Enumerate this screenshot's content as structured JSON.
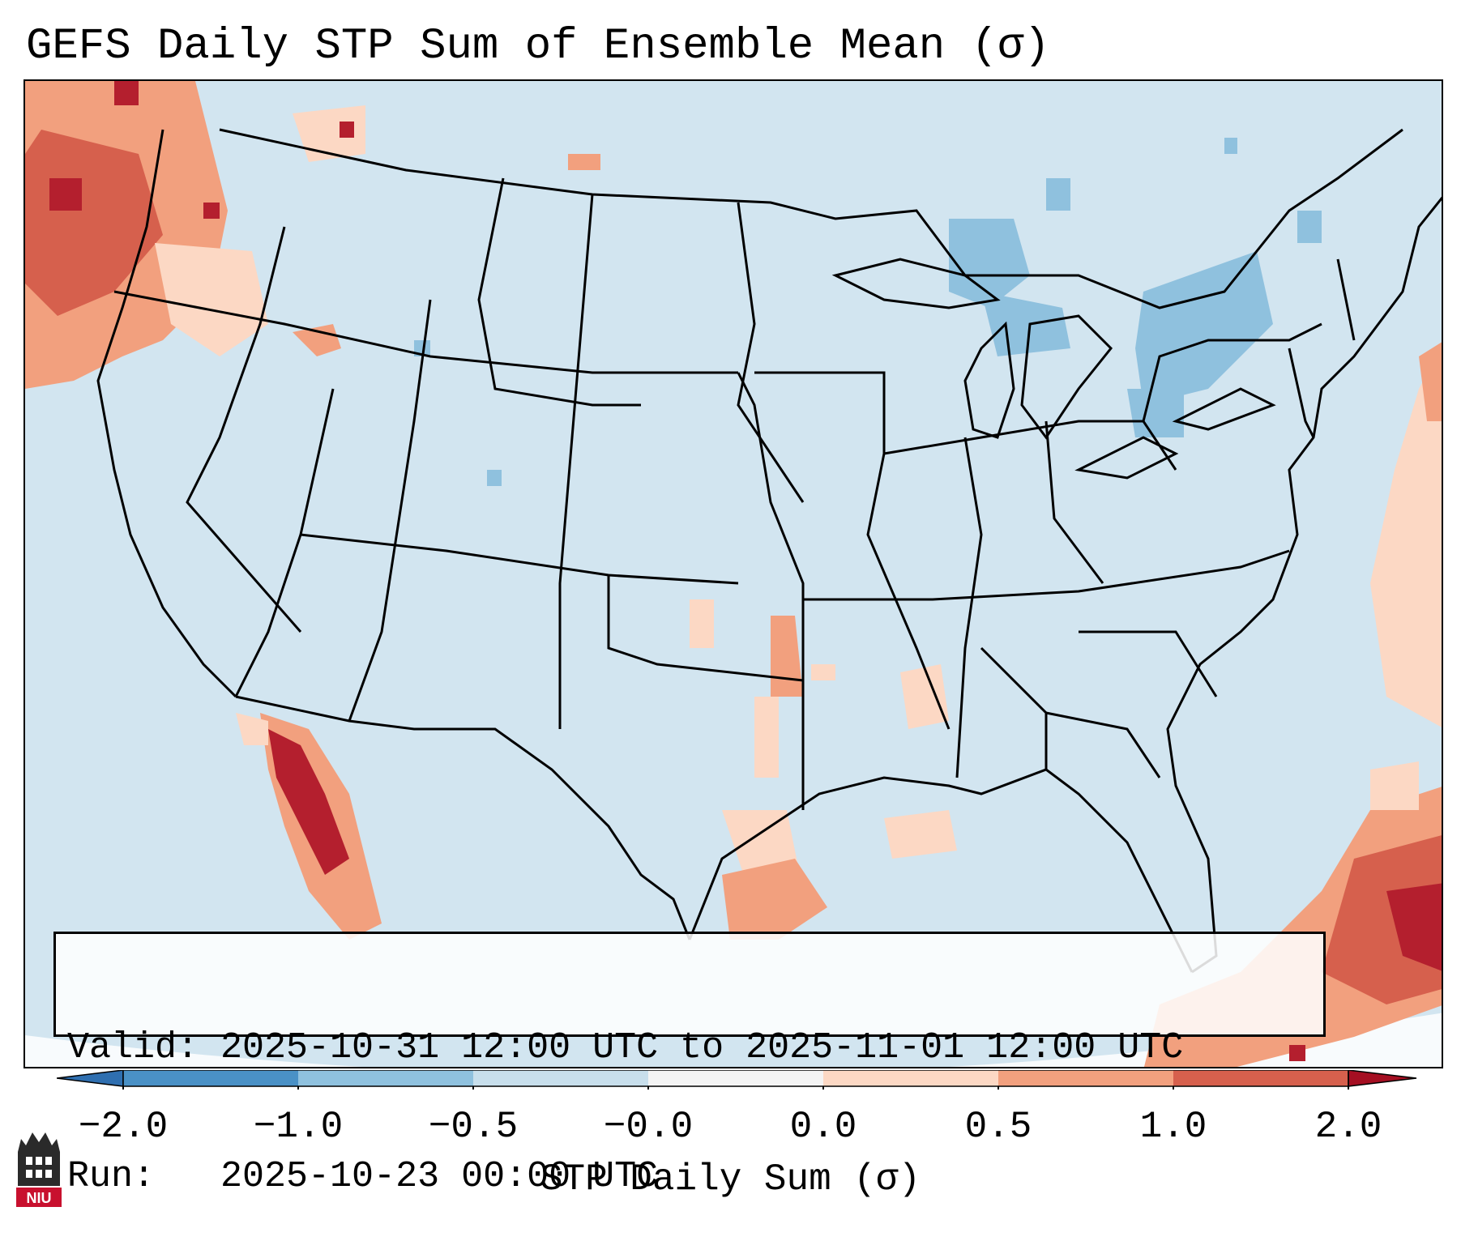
{
  "title": "GEFS Daily STP Sum of Ensemble Mean (σ)",
  "map": {
    "region": "Continental United States",
    "background_color": "#d2e5f0",
    "anomaly_areas": [
      {
        "name": "Pacific Northwest coast",
        "level": "positive 0.5 to 2.0"
      },
      {
        "name": "Baja California / Gulf of California",
        "level": "positive 1.0 to 2.0"
      },
      {
        "name": "Southeast Texas coast",
        "level": "positive 0.0 to 0.5"
      },
      {
        "name": "Western Atlantic / Bahamas",
        "level": "positive 0.5 to 2.0"
      },
      {
        "name": "Great Lakes / Northeast",
        "level": "negative -1.0 to -0.5"
      }
    ]
  },
  "info": {
    "valid_line": "Valid: 2025-10-31 12:00 UTC to 2025-11-01 12:00 UTC",
    "run_line": "Run:   2025-10-23 00:00 UTC"
  },
  "colorbar": {
    "label": "STP Daily Sum (σ)",
    "ticks": [
      "−2.0",
      "−1.0",
      "−0.5",
      "−0.0",
      "0.0",
      "0.5",
      "1.0",
      "2.0"
    ],
    "colors": [
      "#4a91c6",
      "#8fc1de",
      "#c8dfec",
      "#f4f4f4",
      "#fcd8c4",
      "#f2a07e",
      "#d6604d",
      "#b41f2e"
    ],
    "under_color": "#2f6fb0",
    "over_color": "#a50f22"
  },
  "logo": {
    "text": "NIU",
    "color": "#c8102e"
  }
}
